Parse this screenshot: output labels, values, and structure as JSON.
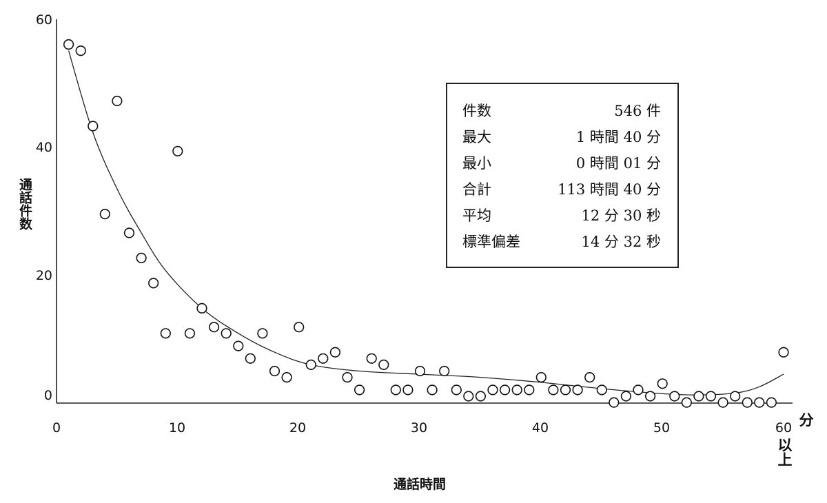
{
  "chart_data": {
    "type": "scatter",
    "xlabel": "通話時間",
    "ylabel": "通話件数",
    "x_unit": "分",
    "x_last_label": "以上",
    "xlim": [
      0,
      60
    ],
    "ylim": [
      0,
      60
    ],
    "x_ticks": [
      "0",
      "10",
      "20",
      "30",
      "40",
      "50",
      "60"
    ],
    "y_ticks": [
      "0",
      "20",
      "40",
      "60"
    ],
    "grid": false,
    "points": [
      {
        "x": 1,
        "y": 56
      },
      {
        "x": 2,
        "y": 55
      },
      {
        "x": 3,
        "y": 43
      },
      {
        "x": 4,
        "y": 29
      },
      {
        "x": 5,
        "y": 47
      },
      {
        "x": 6,
        "y": 26
      },
      {
        "x": 7,
        "y": 22
      },
      {
        "x": 8,
        "y": 18
      },
      {
        "x": 9,
        "y": 10
      },
      {
        "x": 10,
        "y": 39
      },
      {
        "x": 11,
        "y": 10
      },
      {
        "x": 12,
        "y": 14
      },
      {
        "x": 13,
        "y": 11
      },
      {
        "x": 14,
        "y": 10
      },
      {
        "x": 15,
        "y": 8
      },
      {
        "x": 16,
        "y": 6
      },
      {
        "x": 17,
        "y": 10
      },
      {
        "x": 18,
        "y": 4
      },
      {
        "x": 19,
        "y": 3
      },
      {
        "x": 20,
        "y": 11
      },
      {
        "x": 21,
        "y": 5
      },
      {
        "x": 22,
        "y": 6
      },
      {
        "x": 23,
        "y": 7
      },
      {
        "x": 24,
        "y": 3
      },
      {
        "x": 25,
        "y": 1
      },
      {
        "x": 26,
        "y": 6
      },
      {
        "x": 27,
        "y": 5
      },
      {
        "x": 28,
        "y": 1
      },
      {
        "x": 29,
        "y": 1
      },
      {
        "x": 30,
        "y": 4
      },
      {
        "x": 31,
        "y": 1
      },
      {
        "x": 32,
        "y": 4
      },
      {
        "x": 33,
        "y": 1
      },
      {
        "x": 34,
        "y": 0
      },
      {
        "x": 35,
        "y": 0
      },
      {
        "x": 36,
        "y": 1
      },
      {
        "x": 37,
        "y": 1
      },
      {
        "x": 38,
        "y": 1
      },
      {
        "x": 39,
        "y": 1
      },
      {
        "x": 40,
        "y": 3
      },
      {
        "x": 41,
        "y": 1
      },
      {
        "x": 42,
        "y": 1
      },
      {
        "x": 43,
        "y": 1
      },
      {
        "x": 44,
        "y": 3
      },
      {
        "x": 45,
        "y": 1
      },
      {
        "x": 46,
        "y": -1
      },
      {
        "x": 47,
        "y": 0
      },
      {
        "x": 48,
        "y": 1
      },
      {
        "x": 49,
        "y": 0
      },
      {
        "x": 50,
        "y": 2
      },
      {
        "x": 51,
        "y": 0
      },
      {
        "x": 52,
        "y": -1
      },
      {
        "x": 53,
        "y": 0
      },
      {
        "x": 54,
        "y": 0
      },
      {
        "x": 55,
        "y": -1
      },
      {
        "x": 56,
        "y": 0
      },
      {
        "x": 57,
        "y": -1
      },
      {
        "x": 58,
        "y": -1
      },
      {
        "x": 59,
        "y": -1
      },
      {
        "x": 60,
        "y": 7
      }
    ],
    "trend_line": [
      {
        "x": 1,
        "y": 55
      },
      {
        "x": 3,
        "y": 42
      },
      {
        "x": 5,
        "y": 33
      },
      {
        "x": 7,
        "y": 26
      },
      {
        "x": 9,
        "y": 20
      },
      {
        "x": 12,
        "y": 14
      },
      {
        "x": 15,
        "y": 10
      },
      {
        "x": 18,
        "y": 7
      },
      {
        "x": 21,
        "y": 5
      },
      {
        "x": 25,
        "y": 4
      },
      {
        "x": 30,
        "y": 3.5
      },
      {
        "x": 35,
        "y": 3
      },
      {
        "x": 40,
        "y": 2.2
      },
      {
        "x": 45,
        "y": 1.2
      },
      {
        "x": 50,
        "y": 0.4
      },
      {
        "x": 53,
        "y": 0.2
      },
      {
        "x": 56,
        "y": 0.5
      },
      {
        "x": 58,
        "y": 1.5
      },
      {
        "x": 60,
        "y": 3.5
      }
    ]
  },
  "stats": [
    {
      "label": "件数",
      "value": "546 件"
    },
    {
      "label": "最大",
      "value": "1 時間 40 分"
    },
    {
      "label": "最小",
      "value": "0 時間 01 分"
    },
    {
      "label": "合計",
      "value": "113 時間 40 分"
    },
    {
      "label": "平均",
      "value": "12 分 30 秒"
    },
    {
      "label": "標準偏差",
      "value": "14 分 32 秒"
    }
  ]
}
